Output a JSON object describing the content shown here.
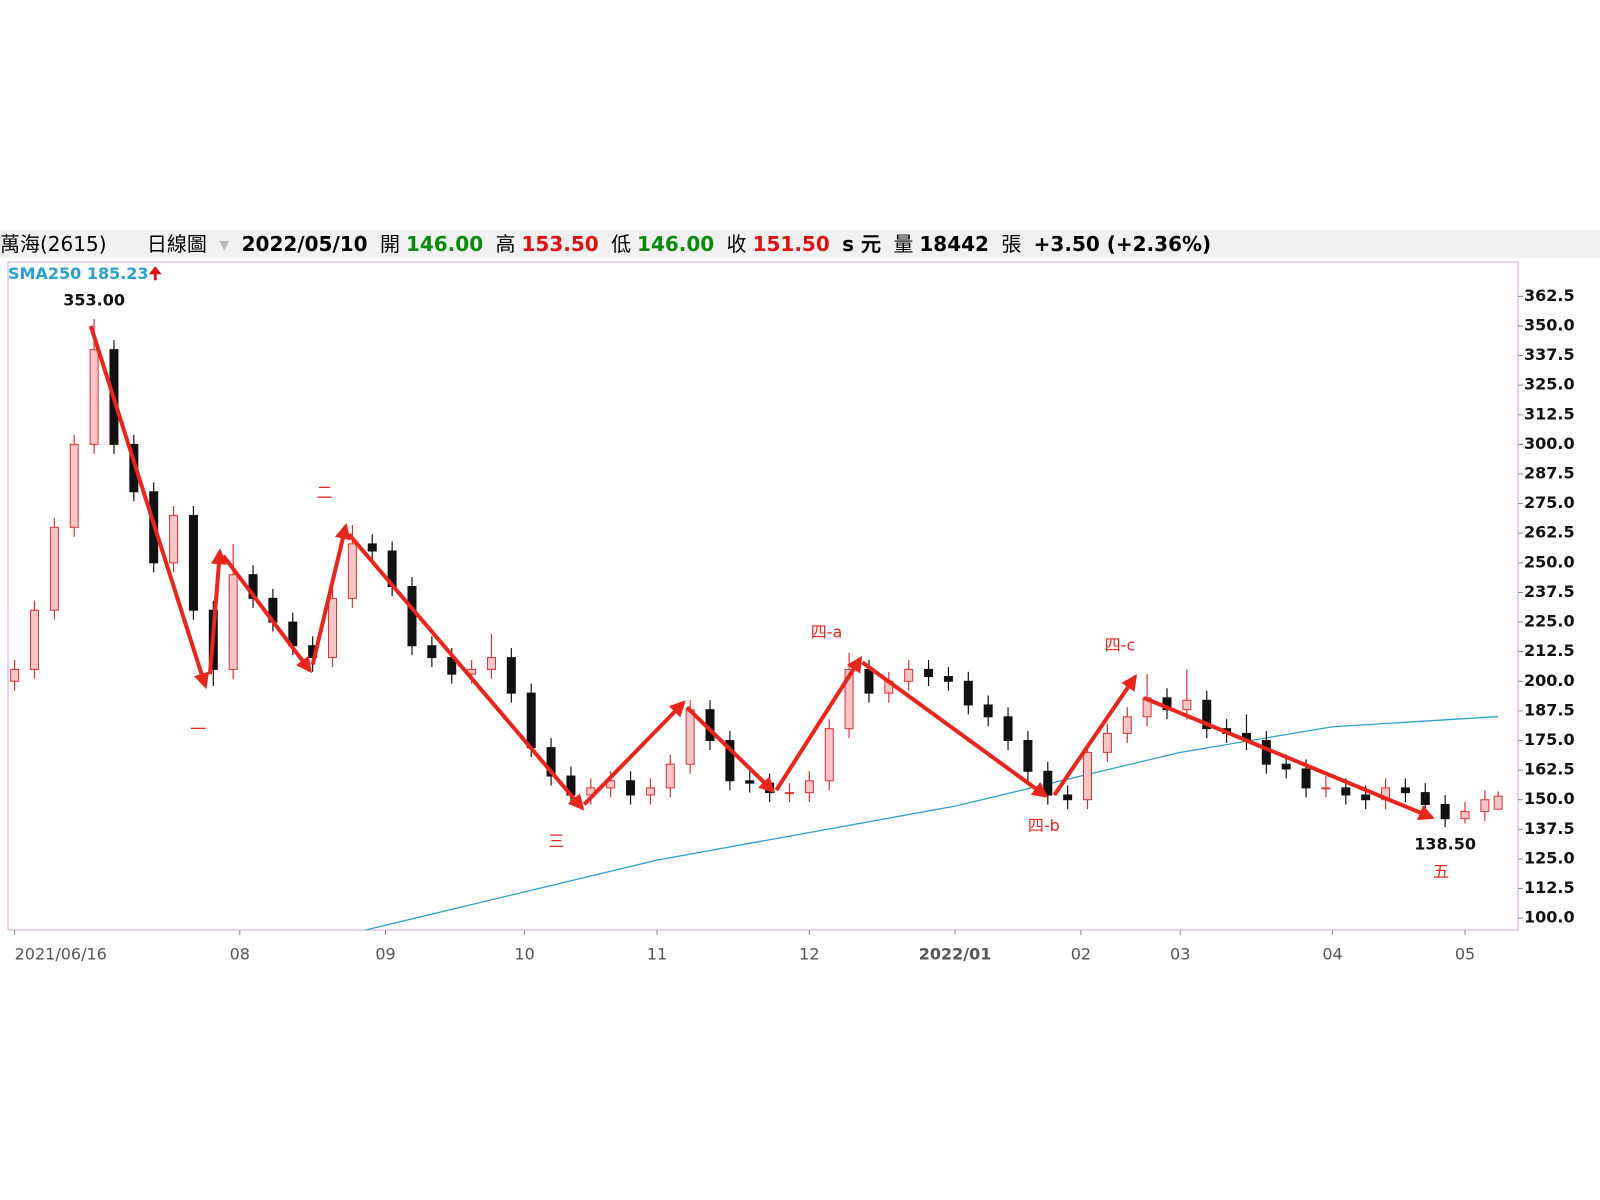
{
  "header": {
    "name": "萬海(2615)",
    "period": "日線圖",
    "date": "2022/05/10",
    "open_label": "開",
    "open": "146.00",
    "high_label": "高",
    "high": "153.50",
    "low_label": "低",
    "low": "146.00",
    "close_label": "收",
    "close": "151.50",
    "unit": "s 元",
    "volume_label": "量",
    "volume": "18442",
    "volume_unit": "張",
    "change": "+3.50 (+2.36%)"
  },
  "chart_data": {
    "type": "candlestick",
    "up_color": "#e03030",
    "down_color": "#111111",
    "x": [
      0,
      3,
      6,
      9,
      12,
      15,
      18,
      21,
      24,
      27,
      30,
      33,
      36,
      39,
      42,
      45,
      48,
      51,
      54,
      57,
      60,
      63,
      66,
      69,
      72,
      75,
      78,
      81,
      84,
      87,
      90,
      93,
      96,
      99,
      102,
      105,
      108,
      111,
      114,
      117,
      120,
      123,
      126,
      129,
      132,
      135,
      138,
      141,
      144,
      147,
      150,
      153,
      156,
      159,
      162,
      165,
      168,
      171,
      174,
      177,
      180,
      183,
      186,
      189,
      192,
      195,
      198,
      201,
      204,
      207,
      210,
      213,
      216,
      219,
      222,
      224
    ],
    "open": [
      200,
      205,
      230,
      265,
      300,
      340,
      300,
      280,
      250,
      270,
      230,
      205,
      245,
      235,
      225,
      215,
      210,
      235,
      258,
      255,
      240,
      215,
      210,
      203,
      205,
      210,
      195,
      172,
      160,
      152,
      155,
      158,
      152,
      155,
      165,
      188,
      175,
      158,
      157,
      153,
      153,
      158,
      180,
      205,
      195,
      200,
      205,
      202,
      200,
      190,
      185,
      175,
      162,
      152,
      150,
      170,
      178,
      185,
      193,
      188,
      192,
      180,
      178,
      175,
      165,
      163,
      155,
      155,
      152,
      150,
      155,
      153,
      148,
      142,
      145,
      146
    ],
    "high": [
      209,
      234,
      269,
      304,
      353,
      344,
      304,
      284,
      274,
      274,
      234,
      258,
      249,
      239,
      229,
      219,
      239,
      266,
      262,
      259,
      244,
      219,
      214,
      209,
      220,
      214,
      199,
      176,
      164,
      159,
      162,
      162,
      159,
      169,
      192,
      192,
      179,
      162,
      161,
      157,
      162,
      184,
      212,
      209,
      204,
      209,
      209,
      206,
      204,
      194,
      189,
      179,
      166,
      156,
      174,
      182,
      189,
      203,
      197,
      205,
      196,
      184,
      186,
      179,
      169,
      167,
      160,
      159,
      156,
      159,
      159,
      157,
      152,
      149,
      154,
      153.5
    ],
    "low": [
      196,
      201,
      226,
      261,
      296,
      296,
      276,
      246,
      246,
      226,
      198,
      201,
      231,
      221,
      211,
      204,
      206,
      231,
      251,
      236,
      211,
      206,
      199,
      199,
      201,
      191,
      168,
      156,
      148,
      148,
      151,
      148,
      148,
      151,
      161,
      171,
      154,
      153,
      149,
      149,
      149,
      154,
      176,
      191,
      191,
      196,
      198,
      196,
      186,
      181,
      171,
      158,
      148,
      146,
      146,
      166,
      174,
      181,
      184,
      184,
      176,
      174,
      171,
      161,
      159,
      151,
      151,
      148,
      146,
      146,
      149,
      144,
      138.5,
      140,
      141,
      146
    ],
    "close": [
      205,
      230,
      265,
      300,
      340,
      300,
      280,
      250,
      270,
      230,
      205,
      245,
      235,
      225,
      215,
      210,
      235,
      258,
      255,
      240,
      215,
      210,
      203,
      205,
      210,
      195,
      172,
      160,
      152,
      155,
      158,
      152,
      155,
      165,
      188,
      175,
      158,
      157,
      153,
      153,
      158,
      180,
      205,
      195,
      200,
      205,
      202,
      200,
      190,
      185,
      175,
      162,
      152,
      150,
      170,
      178,
      185,
      193,
      188,
      192,
      180,
      178,
      175,
      165,
      163,
      155,
      155,
      152,
      150,
      155,
      153,
      148,
      142,
      145,
      150,
      151.5
    ],
    "sma": {
      "name": "SMA250",
      "label": "185.23",
      "color": "#2a9fd0",
      "x": [
        53,
        97,
        142,
        176,
        199,
        224
      ],
      "values": [
        95,
        124.5,
        147.3,
        170,
        180.8,
        185.1
      ]
    },
    "extremes": [
      {
        "value": 353,
        "label": "353.00",
        "x": 12
      },
      {
        "value": 138.5,
        "label": "138.50",
        "x": 216
      }
    ],
    "arrow_color": "#e8261c",
    "arrows": [
      [
        11.5,
        350,
        28.8,
        198
      ],
      [
        29.5,
        203,
        31,
        254.8
      ],
      [
        31.5,
        253,
        44.6,
        204.5
      ],
      [
        45,
        207,
        50,
        265.5
      ],
      [
        50.5,
        262,
        85.7,
        146.4
      ],
      [
        86,
        148,
        101,
        191
      ],
      [
        101.5,
        189,
        114.5,
        153.7
      ],
      [
        115,
        154,
        127.7,
        209.6
      ],
      [
        128,
        208,
        155.7,
        151.6
      ],
      [
        157,
        152,
        169.2,
        201.9
      ],
      [
        170.5,
        193,
        214,
        142.5
      ]
    ],
    "annotations": [
      {
        "text": "一",
        "x": 27.7,
        "y": 179.5
      },
      {
        "text": "二",
        "x": 46.8,
        "y": 279.3
      },
      {
        "text": "三",
        "x": 81.8,
        "y": 132.2
      },
      {
        "text": "四-a",
        "x": 122.6,
        "y": 220.4
      },
      {
        "text": "四-b",
        "x": 155.4,
        "y": 138.7
      },
      {
        "text": "四-c",
        "x": 166.9,
        "y": 214.8
      },
      {
        "text": "五",
        "x": 215.4,
        "y": 119.3
      }
    ],
    "xlim": [
      -1,
      227
    ],
    "ylim": [
      95,
      377
    ],
    "xticks": [
      {
        "value": 0,
        "label": "2021/06/16"
      },
      {
        "value": 34,
        "label": "08"
      },
      {
        "value": 56,
        "label": "09"
      },
      {
        "value": 77,
        "label": "10"
      },
      {
        "value": 97,
        "label": "11"
      },
      {
        "value": 120,
        "label": "12"
      },
      {
        "value": 142,
        "label": "2022/01"
      },
      {
        "value": 161,
        "label": "02"
      },
      {
        "value": 176,
        "label": "03"
      },
      {
        "value": 199,
        "label": "04"
      },
      {
        "value": 219,
        "label": "05"
      }
    ],
    "yticks": [
      {
        "value": 100,
        "label": "100.0"
      },
      {
        "value": 112.5,
        "label": "112.5"
      },
      {
        "value": 125,
        "label": "125.0"
      },
      {
        "value": 137.5,
        "label": "137.5"
      },
      {
        "value": 150,
        "label": "150.0"
      },
      {
        "value": 162.5,
        "label": "162.5"
      },
      {
        "value": 175,
        "label": "175.0"
      },
      {
        "value": 187.5,
        "label": "187.5"
      },
      {
        "value": 200,
        "label": "200.0"
      },
      {
        "value": 212.5,
        "label": "212.5"
      },
      {
        "value": 225,
        "label": "225.0"
      },
      {
        "value": 237.5,
        "label": "237.5"
      },
      {
        "value": 250,
        "label": "250.0"
      },
      {
        "value": 262.5,
        "label": "262.5"
      },
      {
        "value": 275,
        "label": "275.0"
      },
      {
        "value": 287.5,
        "label": "287.5"
      },
      {
        "value": 300,
        "label": "300.0"
      },
      {
        "value": 312.5,
        "label": "312.5"
      },
      {
        "value": 325,
        "label": "325.0"
      },
      {
        "value": 337.5,
        "label": "337.5"
      },
      {
        "value": 350,
        "label": "350.0"
      },
      {
        "value": 362.5,
        "label": "362.5"
      }
    ]
  }
}
